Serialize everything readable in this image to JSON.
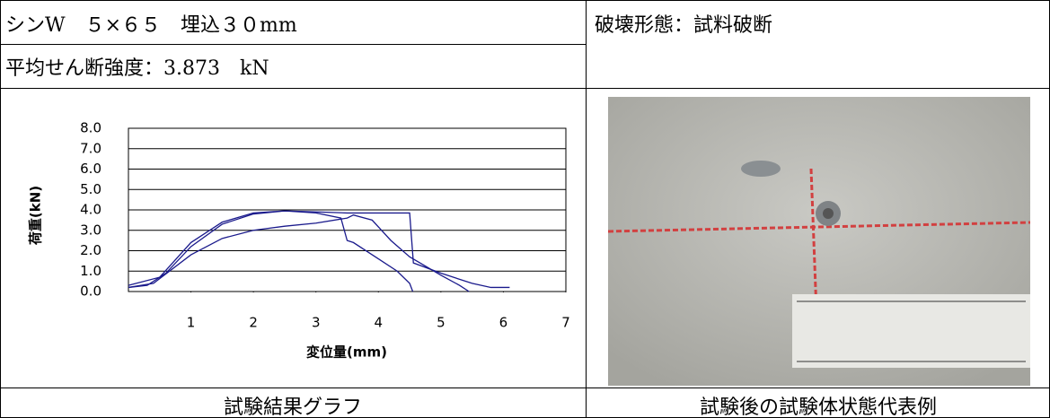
{
  "header": {
    "left_lines": [
      "シンW　５×６５　埋込３０mm",
      "平均せん断強度：3.873　kN"
    ],
    "right": "破壊形態：試料破断"
  },
  "chart_data": {
    "type": "line",
    "ylabel": "荷重(kN)",
    "xlabel": "変位量(mm)",
    "xlim": [
      0,
      7
    ],
    "xticks": [
      1,
      2,
      3,
      4,
      5,
      6,
      7
    ],
    "ylim": [
      0,
      8
    ],
    "yticks": [
      {
        "value": 0,
        "label": "0.0"
      },
      {
        "value": 1,
        "label": "1.0"
      },
      {
        "value": 2,
        "label": "2.0"
      },
      {
        "value": 3,
        "label": "3.0"
      },
      {
        "value": 4,
        "label": "4.0"
      },
      {
        "value": 5,
        "label": "5.0"
      },
      {
        "value": 6,
        "label": "6.0"
      },
      {
        "value": 7,
        "label": "7.0"
      },
      {
        "value": 8,
        "label": "8.0"
      }
    ],
    "grid": true,
    "series": [
      {
        "color": "#1a1a8c",
        "x": [
          0,
          0.3,
          0.6,
          1.0,
          1.5,
          2.0,
          2.5,
          3.0,
          3.5,
          4.0,
          4.5,
          4.56,
          5.0,
          5.5,
          5.8,
          6.1
        ],
        "values": [
          0.2,
          0.3,
          0.9,
          2.2,
          3.3,
          3.8,
          3.95,
          3.9,
          3.85,
          3.85,
          3.85,
          1.4,
          0.9,
          0.4,
          0.2,
          0.2
        ]
      },
      {
        "color": "#1a1a8c",
        "x": [
          0,
          0.4,
          1.0,
          1.5,
          2.0,
          2.5,
          3.0,
          3.5,
          3.6,
          3.9,
          4.2,
          4.5,
          5.0,
          5.3,
          5.45
        ],
        "values": [
          0.2,
          0.4,
          1.8,
          2.6,
          3.0,
          3.2,
          3.35,
          3.6,
          3.75,
          3.5,
          2.5,
          1.7,
          0.8,
          0.3,
          0.0
        ]
      },
      {
        "color": "#1a1a8c",
        "x": [
          0,
          0.5,
          1.0,
          1.5,
          2.0,
          2.5,
          3.0,
          3.4,
          3.5,
          3.6,
          4.0,
          4.3,
          4.5,
          4.55
        ],
        "values": [
          0.3,
          0.7,
          2.4,
          3.4,
          3.85,
          3.95,
          3.85,
          3.6,
          2.5,
          2.4,
          1.6,
          1.0,
          0.4,
          0.0
        ]
      }
    ]
  },
  "footer": {
    "left": "試験結果グラフ",
    "right": "試験後の試験体状態代表例"
  }
}
